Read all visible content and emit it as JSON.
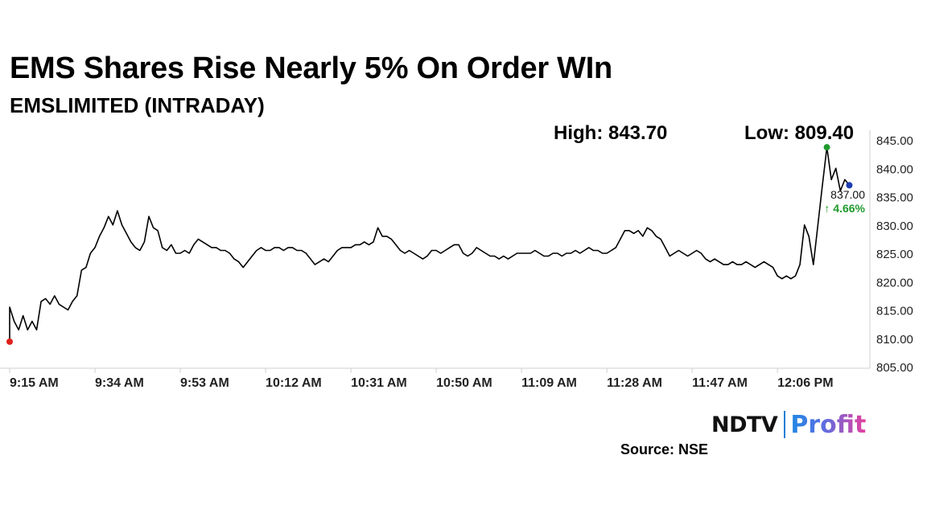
{
  "header": {
    "title": "EMS Shares Rise Nearly 5% On Order WIn",
    "subtitle": "EMSLIMITED (INTRADAY)",
    "high_text": "High: 843.70",
    "low_text": "Low: 809.40"
  },
  "footer": {
    "brand_left": "NDTV",
    "brand_right": "Profit",
    "source": "Source: NSE"
  },
  "chart_data": {
    "type": "line",
    "title": "EMSLIMITED (INTRADAY)",
    "x_tick_labels": [
      "9:15 AM",
      "9:34 AM",
      "9:53 AM",
      "10:12 AM",
      "10:31 AM",
      "10:50 AM",
      "11:09 AM",
      "11:28 AM",
      "11:47 AM",
      "12:06 PM"
    ],
    "y_tick_labels": [
      "845.00",
      "840.00",
      "835.00",
      "830.00",
      "825.00",
      "820.00",
      "815.00",
      "810.00",
      "805.00"
    ],
    "ylim": [
      805,
      845
    ],
    "y_axis_side": "right",
    "grid": false,
    "high": 843.7,
    "low": 809.4,
    "last_price_label": "837.00",
    "change_label": "↑ 4.66%",
    "colors": {
      "line": "#000000",
      "low_marker": "#e0201b",
      "high_marker": "#1f9a2b",
      "last_marker": "#1a3db0",
      "change_text": "#1f9a2b",
      "axis": "#cfcfcf"
    },
    "series": [
      {
        "points": [
          [
            "9:15",
            809.4
          ],
          [
            "9:15",
            815.5
          ],
          [
            "9:16",
            813.0
          ],
          [
            "9:17",
            811.5
          ],
          [
            "9:18",
            814.0
          ],
          [
            "9:19",
            811.5
          ],
          [
            "9:20",
            813.0
          ],
          [
            "9:21",
            811.5
          ],
          [
            "9:22",
            816.5
          ],
          [
            "9:23",
            817.0
          ],
          [
            "9:24",
            816.0
          ],
          [
            "9:25",
            817.5
          ],
          [
            "9:26",
            816.0
          ],
          [
            "9:27",
            815.5
          ],
          [
            "9:28",
            815.0
          ],
          [
            "9:29",
            816.5
          ],
          [
            "9:30",
            817.5
          ],
          [
            "9:31",
            822.0
          ],
          [
            "9:32",
            822.5
          ],
          [
            "9:33",
            825.0
          ],
          [
            "9:34",
            826.0
          ],
          [
            "9:35",
            828.0
          ],
          [
            "9:36",
            829.5
          ],
          [
            "9:37",
            831.5
          ],
          [
            "9:38",
            830.0
          ],
          [
            "9:39",
            832.5
          ],
          [
            "9:40",
            830.0
          ],
          [
            "9:41",
            828.5
          ],
          [
            "9:42",
            827.0
          ],
          [
            "9:43",
            826.0
          ],
          [
            "9:44",
            825.5
          ],
          [
            "9:45",
            827.0
          ],
          [
            "9:46",
            831.5
          ],
          [
            "9:47",
            829.5
          ],
          [
            "9:48",
            829.0
          ],
          [
            "9:49",
            826.0
          ],
          [
            "9:50",
            825.5
          ],
          [
            "9:51",
            826.5
          ],
          [
            "9:52",
            825.0
          ],
          [
            "9:53",
            825.0
          ],
          [
            "9:54",
            825.5
          ],
          [
            "9:55",
            825.0
          ],
          [
            "9:56",
            826.5
          ],
          [
            "9:57",
            827.5
          ],
          [
            "9:58",
            827.0
          ],
          [
            "9:59",
            826.5
          ],
          [
            "10:00",
            826.0
          ],
          [
            "10:01",
            826.0
          ],
          [
            "10:02",
            825.5
          ],
          [
            "10:03",
            825.5
          ],
          [
            "10:04",
            825.0
          ],
          [
            "10:05",
            824.0
          ],
          [
            "10:06",
            823.5
          ],
          [
            "10:07",
            822.5
          ],
          [
            "10:08",
            823.5
          ],
          [
            "10:09",
            824.5
          ],
          [
            "10:10",
            825.5
          ],
          [
            "10:11",
            826.0
          ],
          [
            "10:12",
            825.5
          ],
          [
            "10:13",
            825.5
          ],
          [
            "10:14",
            826.0
          ],
          [
            "10:15",
            826.0
          ],
          [
            "10:16",
            825.5
          ],
          [
            "10:17",
            826.0
          ],
          [
            "10:18",
            826.0
          ],
          [
            "10:19",
            825.5
          ],
          [
            "10:20",
            825.5
          ],
          [
            "10:21",
            825.0
          ],
          [
            "10:22",
            824.0
          ],
          [
            "10:23",
            823.0
          ],
          [
            "10:24",
            823.5
          ],
          [
            "10:25",
            824.0
          ],
          [
            "10:26",
            823.5
          ],
          [
            "10:27",
            824.5
          ],
          [
            "10:28",
            825.5
          ],
          [
            "10:29",
            826.0
          ],
          [
            "10:30",
            826.0
          ],
          [
            "10:31",
            826.0
          ],
          [
            "10:32",
            826.5
          ],
          [
            "10:33",
            826.5
          ],
          [
            "10:34",
            827.0
          ],
          [
            "10:35",
            826.5
          ],
          [
            "10:36",
            827.0
          ],
          [
            "10:37",
            829.5
          ],
          [
            "10:38",
            828.0
          ],
          [
            "10:39",
            828.0
          ],
          [
            "10:40",
            827.5
          ],
          [
            "10:41",
            826.5
          ],
          [
            "10:42",
            825.5
          ],
          [
            "10:43",
            825.0
          ],
          [
            "10:44",
            825.5
          ],
          [
            "10:45",
            825.0
          ],
          [
            "10:46",
            824.5
          ],
          [
            "10:47",
            824.0
          ],
          [
            "10:48",
            824.5
          ],
          [
            "10:49",
            825.5
          ],
          [
            "10:50",
            825.5
          ],
          [
            "10:51",
            825.0
          ],
          [
            "10:52",
            825.5
          ],
          [
            "10:53",
            826.0
          ],
          [
            "10:54",
            826.5
          ],
          [
            "10:55",
            826.5
          ],
          [
            "10:56",
            825.0
          ],
          [
            "10:57",
            824.5
          ],
          [
            "10:58",
            825.0
          ],
          [
            "10:59",
            826.0
          ],
          [
            "11:00",
            825.5
          ],
          [
            "11:01",
            825.0
          ],
          [
            "11:02",
            824.5
          ],
          [
            "11:03",
            824.5
          ],
          [
            "11:04",
            824.0
          ],
          [
            "11:05",
            824.5
          ],
          [
            "11:06",
            824.0
          ],
          [
            "11:07",
            824.5
          ],
          [
            "11:08",
            825.0
          ],
          [
            "11:09",
            825.0
          ],
          [
            "11:10",
            825.0
          ],
          [
            "11:11",
            825.0
          ],
          [
            "11:12",
            825.5
          ],
          [
            "11:13",
            825.0
          ],
          [
            "11:14",
            824.5
          ],
          [
            "11:15",
            824.5
          ],
          [
            "11:16",
            825.0
          ],
          [
            "11:17",
            825.0
          ],
          [
            "11:18",
            824.5
          ],
          [
            "11:19",
            825.0
          ],
          [
            "11:20",
            825.0
          ],
          [
            "11:21",
            825.5
          ],
          [
            "11:22",
            825.0
          ],
          [
            "11:23",
            825.5
          ],
          [
            "11:24",
            826.0
          ],
          [
            "11:25",
            825.5
          ],
          [
            "11:26",
            825.5
          ],
          [
            "11:27",
            825.0
          ],
          [
            "11:28",
            825.0
          ],
          [
            "11:29",
            825.5
          ],
          [
            "11:30",
            826.0
          ],
          [
            "11:31",
            827.5
          ],
          [
            "11:32",
            829.0
          ],
          [
            "11:33",
            829.0
          ],
          [
            "11:34",
            828.5
          ],
          [
            "11:35",
            829.0
          ],
          [
            "11:36",
            828.0
          ],
          [
            "11:37",
            829.5
          ],
          [
            "11:38",
            829.0
          ],
          [
            "11:39",
            828.0
          ],
          [
            "11:40",
            827.5
          ],
          [
            "11:41",
            826.0
          ],
          [
            "11:42",
            824.5
          ],
          [
            "11:43",
            825.0
          ],
          [
            "11:44",
            825.5
          ],
          [
            "11:45",
            825.0
          ],
          [
            "11:46",
            824.5
          ],
          [
            "11:47",
            825.0
          ],
          [
            "11:48",
            825.5
          ],
          [
            "11:49",
            825.0
          ],
          [
            "11:50",
            824.0
          ],
          [
            "11:51",
            823.5
          ],
          [
            "11:52",
            824.0
          ],
          [
            "11:53",
            823.5
          ],
          [
            "11:54",
            823.0
          ],
          [
            "11:55",
            823.0
          ],
          [
            "11:56",
            823.5
          ],
          [
            "11:57",
            823.0
          ],
          [
            "11:58",
            823.0
          ],
          [
            "11:59",
            823.5
          ],
          [
            "12:00",
            823.0
          ],
          [
            "12:01",
            822.5
          ],
          [
            "12:02",
            823.0
          ],
          [
            "12:03",
            823.5
          ],
          [
            "12:04",
            823.0
          ],
          [
            "12:05",
            822.5
          ],
          [
            "12:06",
            821.0
          ],
          [
            "12:07",
            820.5
          ],
          [
            "12:08",
            821.0
          ],
          [
            "12:09",
            820.5
          ],
          [
            "12:10",
            821.0
          ],
          [
            "12:11",
            823.0
          ],
          [
            "12:12",
            830.0
          ],
          [
            "12:13",
            828.0
          ],
          [
            "12:14",
            823.0
          ],
          [
            "12:15",
            830.0
          ],
          [
            "12:16",
            837.0
          ],
          [
            "12:17",
            843.7
          ],
          [
            "12:18",
            838.0
          ],
          [
            "12:19",
            840.0
          ],
          [
            "12:20",
            836.0
          ],
          [
            "12:21",
            838.0
          ],
          [
            "12:22",
            837.0
          ]
        ]
      }
    ]
  }
}
